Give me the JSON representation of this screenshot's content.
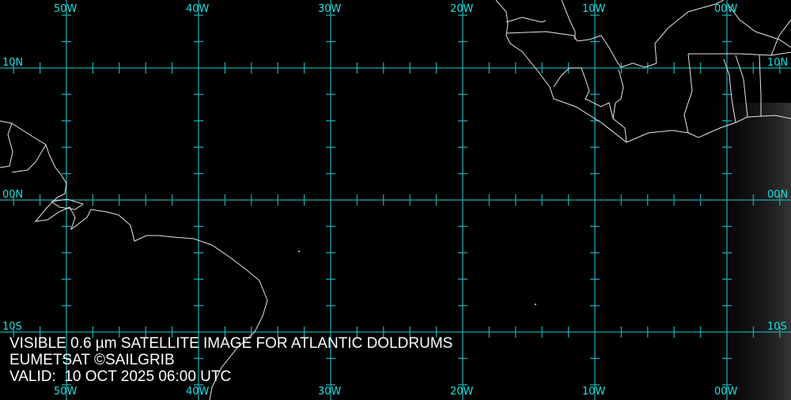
{
  "map": {
    "grid_color": "#1aa8b0",
    "label_color": "#19e0e0",
    "coast_color": "#e6e6e6",
    "longitudes": [
      {
        "value": -50,
        "label": "50W"
      },
      {
        "value": -40,
        "label": "40W"
      },
      {
        "value": -30,
        "label": "30W"
      },
      {
        "value": -20,
        "label": "20W"
      },
      {
        "value": -10,
        "label": "10W"
      },
      {
        "value": 0,
        "label": "00W"
      }
    ],
    "latitudes": [
      {
        "value": 10,
        "label": "10N"
      },
      {
        "value": 0,
        "label": "00N"
      },
      {
        "value": -10,
        "label": "10S"
      }
    ],
    "tick_interval_deg": 2
  },
  "caption": {
    "line1": "VISIBLE 0.6 µm SATELLITE IMAGE FOR ATLANTIC DOLDRUMS",
    "line2": "EUMETSAT ©SAILGRIB",
    "line3": "VALID:  10 OCT 2025 06:00 UTC"
  }
}
